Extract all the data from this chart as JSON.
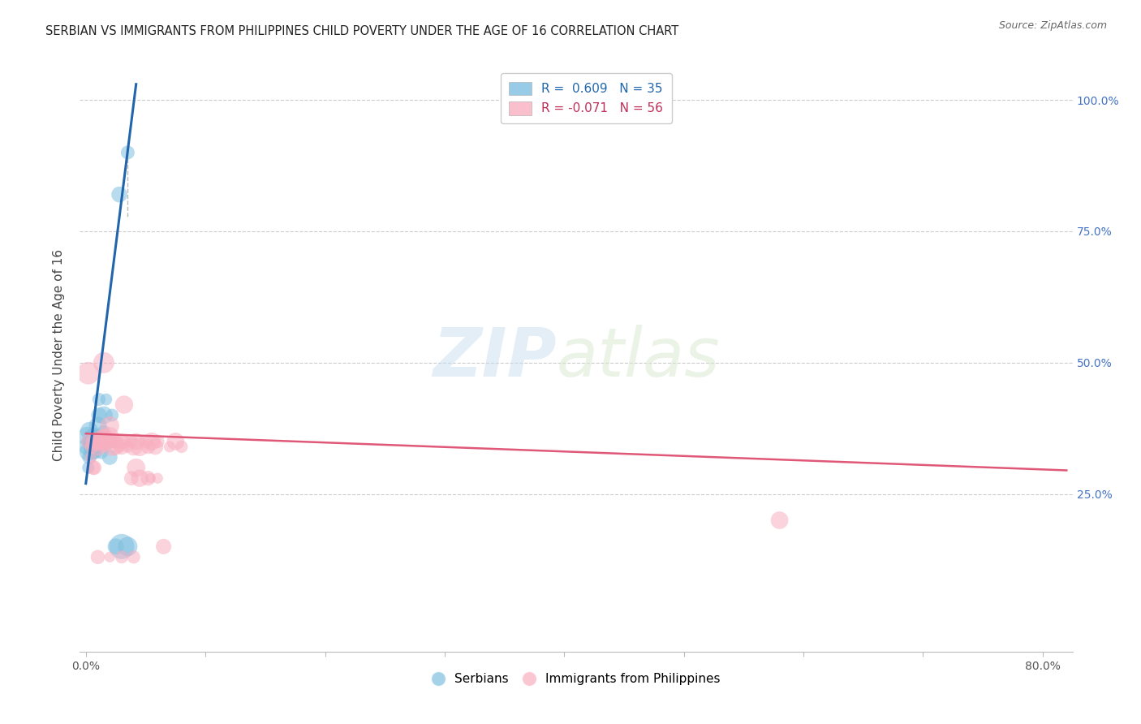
{
  "title": "SERBIAN VS IMMIGRANTS FROM PHILIPPINES CHILD POVERTY UNDER THE AGE OF 16 CORRELATION CHART",
  "source": "Source: ZipAtlas.com",
  "xlabel": "",
  "ylabel": "Child Poverty Under the Age of 16",
  "xlim": [
    -0.005,
    0.825
  ],
  "ylim": [
    -0.05,
    1.08
  ],
  "xticks": [
    0.0,
    0.1,
    0.2,
    0.3,
    0.4,
    0.5,
    0.6,
    0.7,
    0.8
  ],
  "xticklabels": [
    "0.0%",
    "",
    "",
    "",
    "",
    "",
    "",
    "",
    "80.0%"
  ],
  "yticks": [
    0.0,
    0.25,
    0.5,
    0.75,
    1.0
  ],
  "yticklabels": [
    "",
    "25.0%",
    "50.0%",
    "75.0%",
    "100.0%"
  ],
  "blue_color": "#7fbfdf",
  "pink_color": "#f8afc0",
  "blue_line_color": "#2166ac",
  "pink_line_color": "#e05878",
  "watermark_zip": "ZIP",
  "watermark_atlas": "atlas",
  "serbian_data": [
    [
      0.001,
      0.36
    ],
    [
      0.001,
      0.34
    ],
    [
      0.002,
      0.33
    ],
    [
      0.002,
      0.35
    ],
    [
      0.002,
      0.3
    ],
    [
      0.003,
      0.37
    ],
    [
      0.003,
      0.32
    ],
    [
      0.004,
      0.35
    ],
    [
      0.004,
      0.34
    ],
    [
      0.005,
      0.33
    ],
    [
      0.005,
      0.36
    ],
    [
      0.006,
      0.34
    ],
    [
      0.006,
      0.35
    ],
    [
      0.007,
      0.36
    ],
    [
      0.007,
      0.34
    ],
    [
      0.008,
      0.33
    ],
    [
      0.008,
      0.35
    ],
    [
      0.009,
      0.34
    ],
    [
      0.01,
      0.36
    ],
    [
      0.01,
      0.38
    ],
    [
      0.011,
      0.4
    ],
    [
      0.011,
      0.43
    ],
    [
      0.012,
      0.35
    ],
    [
      0.013,
      0.33
    ],
    [
      0.015,
      0.37
    ],
    [
      0.015,
      0.4
    ],
    [
      0.017,
      0.43
    ],
    [
      0.02,
      0.32
    ],
    [
      0.02,
      0.35
    ],
    [
      0.022,
      0.4
    ],
    [
      0.025,
      0.15
    ],
    [
      0.03,
      0.15
    ],
    [
      0.035,
      0.15
    ],
    [
      0.028,
      0.82
    ],
    [
      0.035,
      0.9
    ]
  ],
  "philippines_data": [
    [
      0.002,
      0.48
    ],
    [
      0.003,
      0.35
    ],
    [
      0.004,
      0.32
    ],
    [
      0.005,
      0.34
    ],
    [
      0.006,
      0.3
    ],
    [
      0.007,
      0.3
    ],
    [
      0.008,
      0.35
    ],
    [
      0.009,
      0.35
    ],
    [
      0.01,
      0.35
    ],
    [
      0.01,
      0.34
    ],
    [
      0.011,
      0.35
    ],
    [
      0.012,
      0.35
    ],
    [
      0.013,
      0.36
    ],
    [
      0.014,
      0.34
    ],
    [
      0.015,
      0.36
    ],
    [
      0.016,
      0.35
    ],
    [
      0.017,
      0.36
    ],
    [
      0.018,
      0.35
    ],
    [
      0.02,
      0.36
    ],
    [
      0.022,
      0.34
    ],
    [
      0.023,
      0.35
    ],
    [
      0.025,
      0.34
    ],
    [
      0.027,
      0.35
    ],
    [
      0.028,
      0.34
    ],
    [
      0.03,
      0.35
    ],
    [
      0.03,
      0.34
    ],
    [
      0.032,
      0.35
    ],
    [
      0.035,
      0.34
    ],
    [
      0.038,
      0.35
    ],
    [
      0.04,
      0.34
    ],
    [
      0.042,
      0.35
    ],
    [
      0.045,
      0.34
    ],
    [
      0.05,
      0.35
    ],
    [
      0.052,
      0.34
    ],
    [
      0.055,
      0.35
    ],
    [
      0.058,
      0.34
    ],
    [
      0.06,
      0.35
    ],
    [
      0.065,
      0.15
    ],
    [
      0.07,
      0.34
    ],
    [
      0.075,
      0.35
    ],
    [
      0.08,
      0.34
    ],
    [
      0.015,
      0.5
    ],
    [
      0.02,
      0.38
    ],
    [
      0.025,
      0.35
    ],
    [
      0.032,
      0.42
    ],
    [
      0.038,
      0.28
    ],
    [
      0.042,
      0.3
    ],
    [
      0.045,
      0.28
    ],
    [
      0.052,
      0.28
    ],
    [
      0.054,
      0.28
    ],
    [
      0.06,
      0.28
    ],
    [
      0.58,
      0.2
    ],
    [
      0.01,
      0.13
    ],
    [
      0.02,
      0.13
    ],
    [
      0.03,
      0.13
    ],
    [
      0.04,
      0.13
    ]
  ],
  "blue_regline": [
    [
      0.0,
      0.27
    ],
    [
      0.042,
      1.03
    ]
  ],
  "pink_regline": [
    [
      0.0,
      0.365
    ],
    [
      0.82,
      0.295
    ]
  ],
  "dashed_line": [
    [
      0.035,
      0.9
    ],
    [
      0.035,
      0.775
    ]
  ]
}
